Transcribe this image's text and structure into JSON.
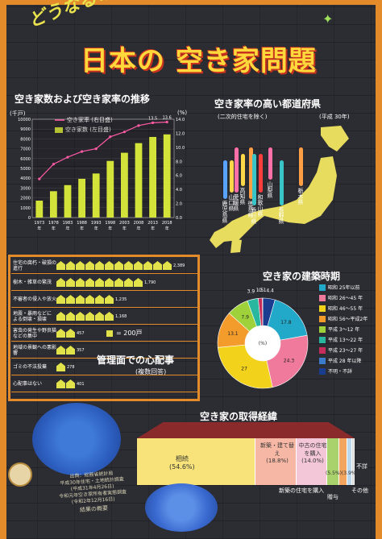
{
  "header": {
    "pretitle": "どうなるの？",
    "title": "日本の 空き家問題"
  },
  "trend": {
    "title": "空き家数および空き家率の推移",
    "ylabel_left": "(千戸)",
    "ylabel_right": "(%)",
    "legend_rate": "空き家率 (右目盛)",
    "legend_count": "空き家数 (左目盛)",
    "left_ticks": [
      "10000",
      "9000",
      "8000",
      "7000",
      "6000",
      "5000",
      "4000",
      "3000",
      "2000",
      "1000",
      "0"
    ],
    "right_ticks": [
      "14.0",
      "12.0",
      "10.0",
      "8.0",
      "6.0",
      "4.0",
      "2.0",
      "0.0"
    ],
    "year_suffix": "年",
    "chart_data": {
      "type": "bar",
      "categories": [
        "1973",
        "1978",
        "1983",
        "1988",
        "1993",
        "1998",
        "2003",
        "2008",
        "2013",
        "2018"
      ],
      "series": [
        {
          "name": "空き家数 (左目盛)",
          "values": [
            1720,
            2680,
            3300,
            3940,
            4480,
            5760,
            6590,
            7570,
            8200,
            8460
          ]
        },
        {
          "name": "空き家率 (右目盛)",
          "values": [
            5.5,
            7.6,
            8.6,
            9.4,
            9.8,
            11.5,
            12.2,
            13.1,
            13.5,
            13.6
          ]
        }
      ],
      "rate_labels": [
        "13.5",
        "13.6"
      ],
      "ylim_left": [
        0,
        10000
      ],
      "ylim_right": [
        0,
        14
      ]
    }
  },
  "prefectures": {
    "title": "空き家率の高い都道府県",
    "note": "(二次的住宅を除く)",
    "year": "(平成 30年)",
    "names": [
      "山梨県",
      "和歌山県",
      "長野県",
      "徳島県",
      "高知県",
      "鹿児島県",
      "愛媛県",
      "香川県",
      "山口県",
      "栃木県"
    ]
  },
  "concerns": {
    "title": "管理面での心配事",
    "subtitle": "(複数回答)",
    "unit_label": "= 200戸",
    "items": [
      {
        "label": "住宅の腐朽・破損の進行",
        "value": "2,389",
        "n": 2389
      },
      {
        "label": "樹木・雑草の繁茂",
        "value": "1,790",
        "n": 1790
      },
      {
        "label": "不審者の侵入や放火",
        "value": "1,235",
        "n": 1235
      },
      {
        "label": "地震・暴雨などによる倒壊・損壊",
        "value": "1,168",
        "n": 1168
      },
      {
        "label": "害虫の発生や野良猫などの集中",
        "value": "457",
        "n": 457
      },
      {
        "label": "地域の景観への悪影響",
        "value": "357",
        "n": 357
      },
      {
        "label": "ゴミの不法投棄",
        "value": "278",
        "n": 278
      },
      {
        "label": "心配事はない",
        "value": "401",
        "n": 401
      }
    ]
  },
  "construction": {
    "title": "空き家の建築時期",
    "center_label": "(%)",
    "chart_data": {
      "type": "pie",
      "categories": [
        "昭和 25年以前",
        "昭和 26〜45 年",
        "昭和 46〜55 年",
        "昭和 56〜平成2年",
        "平成 3〜12 年",
        "平成 13〜22 年",
        "平成 23〜27 年",
        "平成 28 年以降",
        "不明・不詳"
      ],
      "values": [
        17.8,
        24.3,
        27.0,
        13.1,
        7.9,
        3.9,
        1.5,
        0.1,
        4.4
      ],
      "colors": [
        "#22a8c8",
        "#ef7a9c",
        "#f2d21b",
        "#f39b2b",
        "#9fd23a",
        "#2ab7a0",
        "#c62d5a",
        "#3a7cc9",
        "#1b3d8f"
      ]
    }
  },
  "acquisition": {
    "title": "空き家の取得経緯",
    "chart_data": {
      "type": "bar",
      "categories": [
        "相続",
        "新築・建て替え",
        "中古の住宅を購入",
        "新築の住宅を購入",
        "無償",
        "その他",
        "不詳"
      ],
      "values": [
        54.6,
        18.8,
        14.0,
        5.5,
        3.9,
        2.0,
        1.2
      ],
      "colors": [
        "#f7e37a",
        "#f6b8a4",
        "#f3c6d8",
        "#a9d26c",
        "#f2a55f",
        "#b9d7ee",
        "#d9d9d9"
      ]
    },
    "labels": {
      "inherit": "相続",
      "inherit_pct": "(54.6%)",
      "new": "新築・建て替え",
      "new_pct": "(18.8%)",
      "used": "中古の住宅を購入",
      "used_pct": "(14.0%)",
      "small": "(5.5%)(3.9%)",
      "unknown": "不詳",
      "buy_new": "新築の住宅を購入",
      "gift": "贈与",
      "other": "その他"
    }
  },
  "source": {
    "line1": "出典：総務省統計局",
    "line2": "平成30年住宅・土地統計調査",
    "line3": "(平成31年4月26日)",
    "line4": "令和元年空き家所有者実態調査",
    "line5": "(令和2年12月16日)",
    "line6": "結果の概要"
  }
}
